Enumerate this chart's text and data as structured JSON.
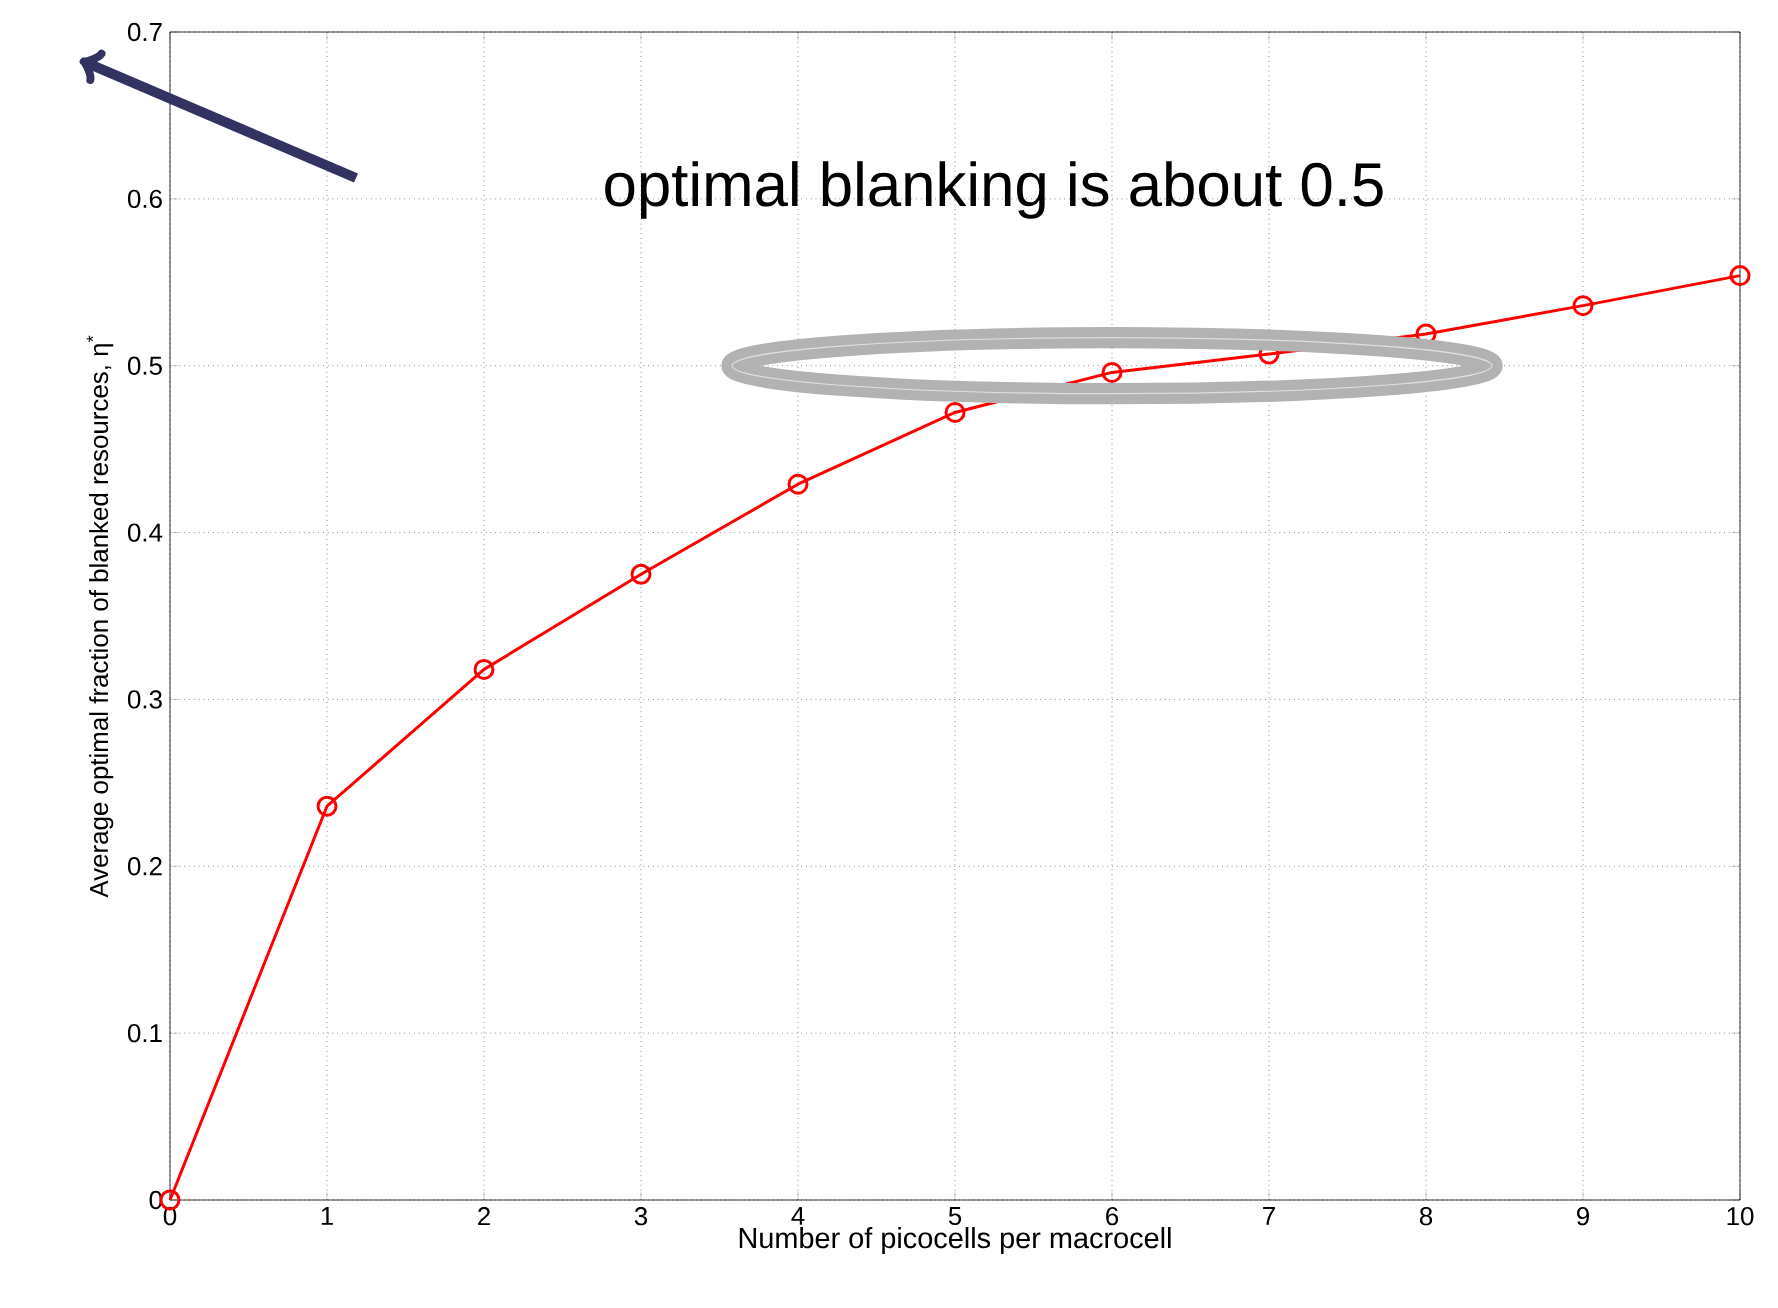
{
  "chart_data": {
    "type": "line",
    "xlabel": "Number of picocells per macrocell",
    "ylabel": "Average optimal fraction of blanked resources, η$^{*}$",
    "x": [
      0,
      1,
      2,
      3,
      4,
      5,
      6,
      7,
      8,
      9,
      10
    ],
    "series": [
      {
        "color": "#ff0000",
        "values": [
          0,
          0.236,
          0.318,
          0.375,
          0.429,
          0.472,
          0.496,
          0.507,
          0.519,
          0.536,
          0.554
        ]
      }
    ],
    "xlim": [
      0,
      10
    ],
    "ylim": [
      0,
      0.7
    ],
    "xticks": [
      0,
      1,
      2,
      3,
      4,
      5,
      6,
      7,
      8,
      9,
      10
    ],
    "yticks": [
      0,
      0.1,
      0.2,
      0.3,
      0.4,
      0.5,
      0.6,
      0.7
    ],
    "grid": true,
    "marker": "circle",
    "line_style": "solid",
    "annotations": [
      "optimal blanking is about 0.5"
    ]
  }
}
